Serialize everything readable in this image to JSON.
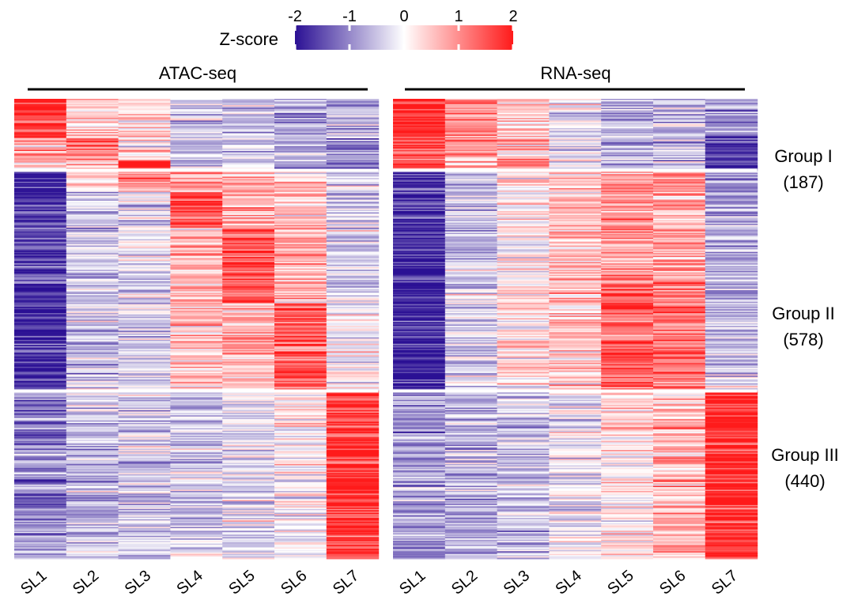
{
  "chart_data": {
    "type": "heatmap",
    "colorbar": {
      "title": "Z-score",
      "ticks": [
        "-2",
        "-1",
        "0",
        "1",
        "2"
      ],
      "range": [
        -2,
        2
      ],
      "colors": {
        "low": "#2b1094",
        "mid": "#ffffff",
        "high": "#ff1a1a"
      }
    },
    "columns": [
      "SL1",
      "SL2",
      "SL3",
      "SL4",
      "SL5",
      "SL6",
      "SL7"
    ],
    "panels": [
      {
        "title": "ATAC-seq",
        "groups": [
          {
            "label": "Group I",
            "count_label": "(187)",
            "count": 187,
            "mean_z": [
              1.7,
              0.4,
              0.3,
              -0.4,
              -0.5,
              -0.7,
              -0.9
            ],
            "sub_blocks": [
              {
                "fraction": 0.55,
                "mean_z": [
                  1.9,
                  0.3,
                  0.2,
                  -0.4,
                  -0.5,
                  -0.7,
                  -0.8
                ]
              },
              {
                "fraction": 0.3,
                "mean_z": [
                  0.7,
                  1.5,
                  0.3,
                  -0.4,
                  -0.5,
                  -0.7,
                  -1.0
                ]
              },
              {
                "fraction": 0.15,
                "mean_z": [
                  0.5,
                  0.7,
                  1.6,
                  -0.4,
                  -0.5,
                  -0.7,
                  -1.1
                ]
              }
            ]
          },
          {
            "label": "Group II",
            "count_label": "(578)",
            "count": 578,
            "mean_z": [
              -1.7,
              -0.5,
              -0.3,
              0.7,
              1.0,
              0.9,
              -0.3
            ],
            "sub_blocks": [
              {
                "fraction": 0.1,
                "mean_z": [
                  -1.6,
                  0.2,
                  0.9,
                  0.9,
                  0.6,
                  0.5,
                  -0.4
                ]
              },
              {
                "fraction": 0.16,
                "mean_z": [
                  -1.7,
                  -0.4,
                  -0.3,
                  1.5,
                  0.8,
                  0.5,
                  -0.3
                ]
              },
              {
                "fraction": 0.34,
                "mean_z": [
                  -1.7,
                  -0.5,
                  -0.4,
                  0.6,
                  1.5,
                  0.7,
                  -0.3
                ]
              },
              {
                "fraction": 0.4,
                "mean_z": [
                  -1.7,
                  -0.5,
                  -0.4,
                  0.5,
                  0.7,
                  1.5,
                  0.0
                ]
              }
            ]
          },
          {
            "label": "Group III",
            "count_label": "(440)",
            "count": 440,
            "mean_z": [
              -1.0,
              -0.5,
              -0.4,
              -0.5,
              -0.2,
              0.0,
              1.8
            ],
            "sub_blocks": [
              {
                "fraction": 1.0,
                "mean_z": [
                  -1.0,
                  -0.5,
                  -0.4,
                  -0.5,
                  -0.2,
                  0.0,
                  1.8
                ]
              }
            ]
          }
        ]
      },
      {
        "title": "RNA-seq",
        "groups": [
          {
            "label": "Group I",
            "count_label": "(187)",
            "count": 187,
            "mean_z": [
              1.8,
              0.9,
              0.6,
              -0.2,
              -0.6,
              -0.6,
              -1.2
            ],
            "sub_blocks": [
              {
                "fraction": 0.5,
                "mean_z": [
                  1.9,
                  0.9,
                  0.5,
                  -0.2,
                  -0.6,
                  -0.6,
                  -1.0
                ]
              },
              {
                "fraction": 0.3,
                "mean_z": [
                  1.7,
                  1.0,
                  0.6,
                  -0.2,
                  -0.6,
                  -0.6,
                  -1.5
                ]
              },
              {
                "fraction": 0.2,
                "mean_z": [
                  1.5,
                  0.8,
                  1.1,
                  -0.2,
                  -0.5,
                  -0.6,
                  -1.6
                ]
              }
            ]
          },
          {
            "label": "Group II",
            "count_label": "(578)",
            "count": 578,
            "mean_z": [
              -1.8,
              -0.4,
              0.2,
              0.5,
              1.2,
              1.0,
              -0.6
            ],
            "sub_blocks": [
              {
                "fraction": 0.5,
                "mean_z": [
                  -1.8,
                  -0.5,
                  0.1,
                  0.6,
                  0.9,
                  0.8,
                  -0.7
                ]
              },
              {
                "fraction": 0.5,
                "mean_z": [
                  -1.8,
                  -0.3,
                  0.3,
                  0.5,
                  1.4,
                  1.2,
                  -0.5
                ]
              }
            ]
          },
          {
            "label": "Group III",
            "count_label": "(440)",
            "count": 440,
            "mean_z": [
              -0.8,
              -0.6,
              -0.5,
              -0.2,
              0.2,
              0.6,
              1.9
            ],
            "sub_blocks": [
              {
                "fraction": 1.0,
                "mean_z": [
                  -0.8,
                  -0.6,
                  -0.5,
                  -0.2,
                  0.2,
                  0.6,
                  1.9
                ]
              }
            ]
          }
        ]
      }
    ]
  }
}
